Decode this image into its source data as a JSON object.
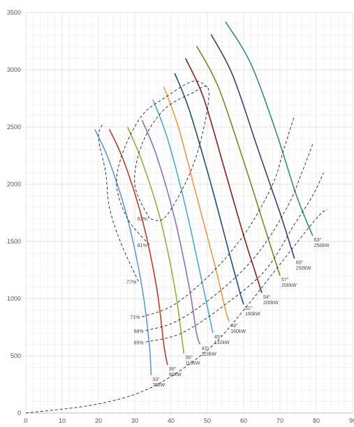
{
  "chart_data": {
    "type": "line",
    "xlim": [
      0,
      90
    ],
    "ylim": [
      0,
      3500
    ],
    "x_ticks": [
      "0",
      "10",
      "20",
      "30",
      "40",
      "50",
      "60",
      "70",
      "80",
      "90"
    ],
    "y_ticks": [
      "0",
      "500",
      "1000",
      "1500",
      "2000",
      "2500",
      "3000",
      "3500"
    ],
    "grid": true,
    "series": [
      {
        "label": "33°\n75kW",
        "color": "#5b9bd5",
        "points": [
          [
            19,
            2480
          ],
          [
            23,
            2200
          ],
          [
            28,
            1700
          ],
          [
            32,
            1100
          ],
          [
            34,
            600
          ],
          [
            34.5,
            330
          ]
        ]
      },
      {
        "label": "36°\n90kW",
        "color": "#c0392b",
        "points": [
          [
            23,
            2480
          ],
          [
            27,
            2200
          ],
          [
            32,
            1700
          ],
          [
            36,
            1100
          ],
          [
            38,
            600
          ],
          [
            39,
            420
          ]
        ]
      },
      {
        "label": "39°\n110kW",
        "color": "#8db33f",
        "points": [
          [
            28,
            2500
          ],
          [
            32,
            2200
          ],
          [
            37,
            1700
          ],
          [
            41,
            1100
          ],
          [
            43,
            650
          ],
          [
            43.5,
            520
          ]
        ]
      },
      {
        "label": "42°\n110kW",
        "color": "#8e6fc1",
        "points": [
          [
            32,
            2560
          ],
          [
            36,
            2250
          ],
          [
            41,
            1700
          ],
          [
            45,
            1100
          ],
          [
            47,
            700
          ],
          [
            48,
            600
          ]
        ]
      },
      {
        "label": "45°\n132kW",
        "color": "#4bacc6",
        "points": [
          [
            35,
            2740
          ],
          [
            39,
            2400
          ],
          [
            44,
            1800
          ],
          [
            48.5,
            1150
          ],
          [
            51,
            780
          ],
          [
            51.5,
            700
          ]
        ]
      },
      {
        "label": "48°\n160kW",
        "color": "#f79646",
        "points": [
          [
            38,
            2850
          ],
          [
            42,
            2500
          ],
          [
            47,
            1900
          ],
          [
            52,
            1300
          ],
          [
            55,
            900
          ],
          [
            56,
            800
          ]
        ]
      },
      {
        "label": "51°\n160kW",
        "color": "#1f4e79",
        "points": [
          [
            41,
            2970
          ],
          [
            45,
            2650
          ],
          [
            51,
            2000
          ],
          [
            56,
            1400
          ],
          [
            59,
            1050
          ],
          [
            60,
            950
          ]
        ]
      },
      {
        "label": "54°\n200kW",
        "color": "#8b1a1a",
        "points": [
          [
            44,
            3100
          ],
          [
            49,
            2750
          ],
          [
            55,
            2100
          ],
          [
            60,
            1550
          ],
          [
            64,
            1150
          ],
          [
            65,
            1050
          ]
        ]
      },
      {
        "label": "57°\n200kW",
        "color": "#6b8e23",
        "points": [
          [
            47,
            3210
          ],
          [
            53,
            2850
          ],
          [
            60,
            2200
          ],
          [
            66,
            1600
          ],
          [
            69,
            1300
          ],
          [
            70,
            1200
          ]
        ]
      },
      {
        "label": "60°\n250kW",
        "color": "#3c3c7a",
        "points": [
          [
            51,
            3310
          ],
          [
            57,
            2950
          ],
          [
            64,
            2300
          ],
          [
            70,
            1750
          ],
          [
            73,
            1450
          ],
          [
            74,
            1350
          ]
        ]
      },
      {
        "label": "63°\n250kW",
        "color": "#2e8b8b",
        "points": [
          [
            55,
            3420
          ],
          [
            62,
            3050
          ],
          [
            69,
            2450
          ],
          [
            74,
            1950
          ],
          [
            77,
            1700
          ],
          [
            79,
            1550
          ]
        ]
      }
    ],
    "efficiency_contours": [
      {
        "label": "83%",
        "points": [
          [
            34,
            1700
          ],
          [
            30,
            2000
          ],
          [
            32,
            2350
          ],
          [
            38,
            2650
          ],
          [
            46,
            2800
          ],
          [
            50,
            2850
          ],
          [
            50,
            2650
          ],
          [
            47,
            2250
          ],
          [
            43,
            1950
          ],
          [
            38,
            1700
          ],
          [
            34,
            1700
          ]
        ]
      },
      {
        "label": "81%",
        "points": [
          [
            34,
            1470
          ],
          [
            28,
            1700
          ],
          [
            25,
            2000
          ],
          [
            27,
            2300
          ],
          [
            32,
            2600
          ],
          [
            38,
            2750
          ],
          [
            46,
            2900
          ],
          [
            50,
            2850
          ]
        ]
      },
      {
        "label": "77%",
        "points": [
          [
            31,
            1150
          ],
          [
            26,
            1500
          ],
          [
            23,
            1800
          ],
          [
            22,
            2100
          ],
          [
            20,
            2400
          ],
          [
            21,
            2520
          ]
        ]
      },
      {
        "label": "71%",
        "points": [
          [
            32,
            840
          ],
          [
            41,
            950
          ],
          [
            52,
            1250
          ],
          [
            61,
            1600
          ],
          [
            68,
            2000
          ],
          [
            71,
            2300
          ],
          [
            74,
            2600
          ]
        ]
      },
      {
        "label": "68%",
        "points": [
          [
            33,
            720
          ],
          [
            42,
            810
          ],
          [
            54,
            1080
          ],
          [
            64,
            1400
          ],
          [
            72,
            1800
          ],
          [
            76,
            2100
          ],
          [
            79,
            2350
          ]
        ]
      },
      {
        "label": "65%",
        "points": [
          [
            33,
            620
          ],
          [
            43,
            700
          ],
          [
            55,
            950
          ],
          [
            66,
            1250
          ],
          [
            74,
            1650
          ],
          [
            79,
            1900
          ],
          [
            82,
            2100
          ]
        ]
      }
    ],
    "system_curve": [
      [
        0,
        0
      ],
      [
        20,
        80
      ],
      [
        35,
        230
      ],
      [
        50,
        550
      ],
      [
        60,
        900
      ],
      [
        70,
        1300
      ],
      [
        80,
        1700
      ],
      [
        83,
        1780
      ]
    ]
  }
}
